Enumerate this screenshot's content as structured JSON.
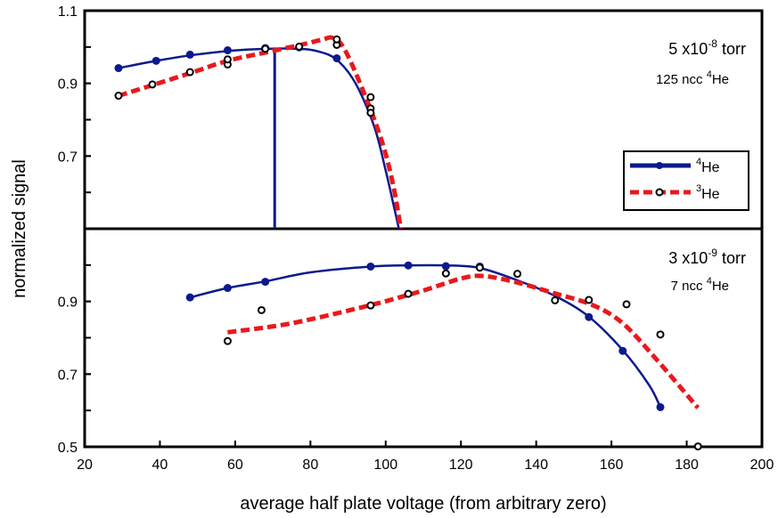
{
  "chart_data": [
    {
      "type": "line",
      "panel": "top",
      "annotation_pressure": "5 x10-8 torr",
      "annotation_pressure_base": "5 x10",
      "annotation_pressure_exp": "-8",
      "annotation_pressure_unit": " torr",
      "annotation_gas_prefix": "125 ncc ",
      "annotation_gas_sup": "4",
      "annotation_gas_suffix": "He",
      "xlim": [
        20,
        200
      ],
      "ylim": [
        0.5,
        1.1
      ],
      "yticks": [
        "1.1",
        "0.9",
        "0.7"
      ],
      "vertical_line_x": 70.5,
      "series": [
        {
          "name": "4He",
          "name_sup": "4",
          "name_base": "He",
          "color": "#0b1a8c",
          "style": "solid",
          "marker": "filled-circle",
          "points": [
            [
              29,
              0.942
            ],
            [
              39,
              0.962
            ],
            [
              48,
              0.979
            ],
            [
              58,
              0.991
            ],
            [
              68,
              0.997
            ],
            [
              77,
              0.999
            ],
            [
              87,
              0.969
            ]
          ],
          "curve": [
            [
              29,
              0.942
            ],
            [
              39,
              0.962
            ],
            [
              48,
              0.977
            ],
            [
              58,
              0.989
            ],
            [
              68,
              0.995
            ],
            [
              77,
              0.995
            ],
            [
              82,
              0.988
            ],
            [
              87,
              0.965
            ],
            [
              92,
              0.9
            ],
            [
              97,
              0.78
            ],
            [
              100,
              0.66
            ],
            [
              102,
              0.57
            ],
            [
              103.5,
              0.5
            ]
          ]
        },
        {
          "name": "3He",
          "name_sup": "3",
          "name_base": "He",
          "color": "#e8191c",
          "style": "dashed",
          "marker": "open-circle",
          "points": [
            [
              29,
              0.866
            ],
            [
              38,
              0.897
            ],
            [
              48,
              0.931
            ],
            [
              58,
              0.952
            ],
            [
              58,
              0.966
            ],
            [
              68,
              0.995
            ],
            [
              77,
              1.001
            ],
            [
              87,
              1.006
            ],
            [
              87,
              1.021
            ],
            [
              96,
              0.862
            ],
            [
              96,
              0.831
            ],
            [
              96,
              0.819
            ]
          ],
          "curve": [
            [
              29,
              0.866
            ],
            [
              38,
              0.895
            ],
            [
              48,
              0.928
            ],
            [
              58,
              0.962
            ],
            [
              68,
              0.985
            ],
            [
              77,
              1.005
            ],
            [
              83,
              1.02
            ],
            [
              86,
              1.025
            ],
            [
              89,
              0.995
            ],
            [
              94,
              0.88
            ],
            [
              99,
              0.74
            ],
            [
              102,
              0.62
            ],
            [
              104,
              0.5
            ]
          ]
        }
      ]
    },
    {
      "type": "line",
      "panel": "bottom",
      "annotation_pressure": "3 x10-9 torr",
      "annotation_pressure_base": "3 x10",
      "annotation_pressure_exp": "-9",
      "annotation_pressure_unit": " torr",
      "annotation_gas_prefix": "7 ncc ",
      "annotation_gas_sup": "4",
      "annotation_gas_suffix": "He",
      "xlim": [
        20,
        200
      ],
      "ylim": [
        0.5,
        1.1
      ],
      "yticks": [
        "0.9",
        "0.7",
        "0.5"
      ],
      "series": [
        {
          "name": "4He",
          "color": "#0b1a8c",
          "style": "solid",
          "marker": "filled-circle",
          "points": [
            [
              48,
              0.911
            ],
            [
              58,
              0.937
            ],
            [
              68,
              0.954
            ],
            [
              96,
              0.996
            ],
            [
              106,
              0.999
            ],
            [
              116,
              0.997
            ],
            [
              125,
              0.996
            ],
            [
              154,
              0.857
            ],
            [
              163,
              0.764
            ],
            [
              173,
              0.609
            ]
          ],
          "curve": [
            [
              48,
              0.911
            ],
            [
              58,
              0.937
            ],
            [
              68,
              0.955
            ],
            [
              80,
              0.98
            ],
            [
              96,
              0.996
            ],
            [
              106,
              0.999
            ],
            [
              116,
              0.999
            ],
            [
              125,
              0.992
            ],
            [
              135,
              0.958
            ],
            [
              145,
              0.915
            ],
            [
              154,
              0.858
            ],
            [
              163,
              0.766
            ],
            [
              170,
              0.67
            ],
            [
              173,
              0.609
            ]
          ]
        },
        {
          "name": "3He",
          "color": "#e8191c",
          "style": "dashed",
          "marker": "open-circle",
          "points": [
            [
              58,
              0.791
            ],
            [
              67,
              0.876
            ],
            [
              96,
              0.889
            ],
            [
              106,
              0.921
            ],
            [
              116,
              0.977
            ],
            [
              125,
              0.993
            ],
            [
              135,
              0.976
            ],
            [
              145,
              0.903
            ],
            [
              154,
              0.904
            ],
            [
              164,
              0.892
            ],
            [
              173,
              0.809
            ],
            [
              183,
              0.501
            ]
          ],
          "curve": [
            [
              58,
              0.815
            ],
            [
              75,
              0.84
            ],
            [
              96,
              0.89
            ],
            [
              110,
              0.93
            ],
            [
              120,
              0.963
            ],
            [
              126,
              0.97
            ],
            [
              135,
              0.952
            ],
            [
              145,
              0.922
            ],
            [
              155,
              0.89
            ],
            [
              163,
              0.84
            ],
            [
              172,
              0.74
            ],
            [
              183,
              0.607
            ]
          ]
        }
      ]
    }
  ],
  "axes": {
    "xlabel": "average half plate voltage (from arbitrary zero)",
    "ylabel": "normalized signal",
    "xticks": [
      "20",
      "40",
      "60",
      "80",
      "100",
      "120",
      "140",
      "160",
      "180",
      "200"
    ]
  },
  "legend": {
    "placement": "right, lower part of top panel",
    "entries": [
      {
        "sup": "4",
        "base": "He"
      },
      {
        "sup": "3",
        "base": "He"
      }
    ]
  }
}
